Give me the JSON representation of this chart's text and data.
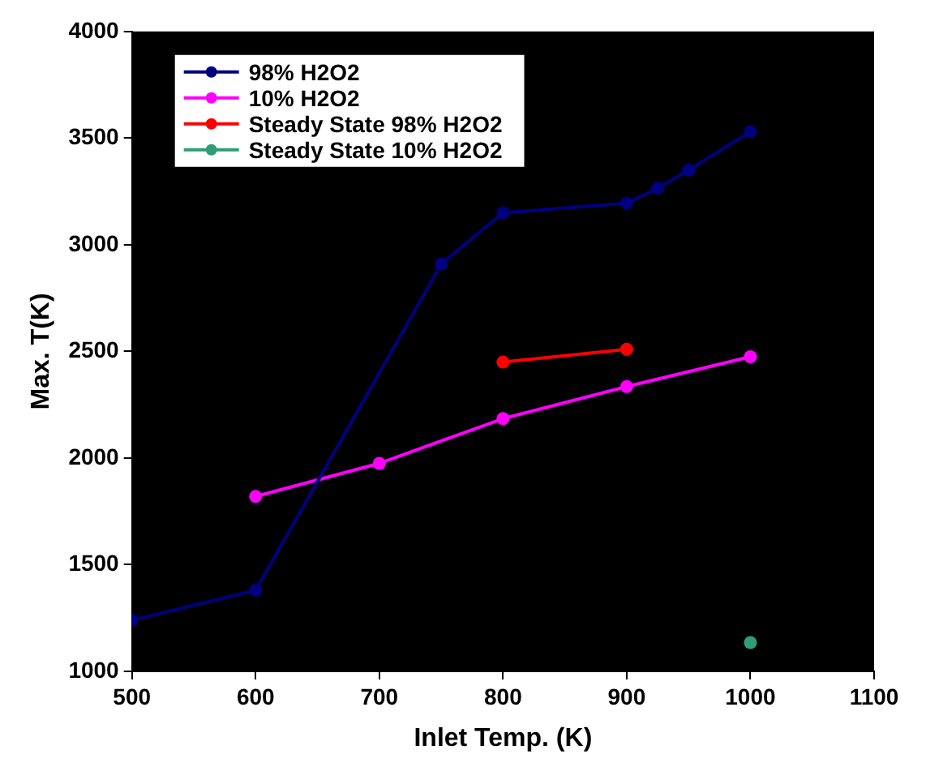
{
  "chart_data": {
    "type": "line",
    "xlabel": "Inlet Temp. (K)",
    "ylabel": "Max. T(K)",
    "xlim": [
      500,
      1100
    ],
    "xticks": [
      500,
      600,
      700,
      800,
      900,
      1000,
      1100
    ],
    "ylim": [
      1000,
      4000
    ],
    "yticks": [
      1000,
      1500,
      2000,
      2500,
      3000,
      3500,
      4000
    ],
    "grid": false,
    "legend": "top left",
    "marker": "circle",
    "line_style": "solid",
    "series": [
      {
        "name": "98% H2O2",
        "color": "#000080",
        "x": [
          500,
          600,
          750,
          800,
          900,
          925,
          950,
          1000
        ],
        "values": [
          1240,
          1380,
          2910,
          3150,
          3195,
          3265,
          3350,
          3530
        ]
      },
      {
        "name": "10% H2O2",
        "color": "#ff00ff",
        "x": [
          600,
          700,
          800,
          900,
          1000
        ],
        "values": [
          1820,
          1975,
          2185,
          2335,
          2475
        ]
      },
      {
        "name": "Steady State 98% H2O2",
        "color": "#ff0000",
        "x": [
          800,
          900
        ],
        "values": [
          2450,
          2510
        ]
      },
      {
        "name": "Steady State 10% H2O2",
        "type": "scatter",
        "color": "#2e9e78",
        "x": [
          1000
        ],
        "values": [
          1135
        ]
      }
    ]
  }
}
